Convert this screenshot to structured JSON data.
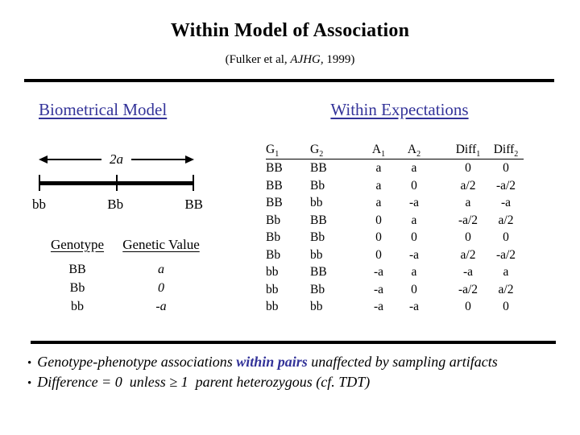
{
  "slide": {
    "title": "Within Model of Association",
    "subtitle_prefix": "(Fulker et al, ",
    "subtitle_journal": "AJHG,",
    "subtitle_suffix": " 1999)"
  },
  "colors": {
    "accent": "#333399",
    "text": "#000000",
    "background": "#ffffff"
  },
  "biometrical": {
    "heading": "Biometrical Model",
    "scale": {
      "arrow_label": "2a",
      "tick_labels": [
        "bb",
        "Bb",
        "BB"
      ]
    },
    "genotype_table": {
      "col1_header": "Genotype",
      "col2_header": "Genetic Value",
      "rows": [
        {
          "genotype": "BB",
          "value": "a"
        },
        {
          "genotype": "Bb",
          "value": "0"
        },
        {
          "genotype": "bb",
          "value": "-a"
        }
      ]
    }
  },
  "expectations": {
    "heading": "Within Expectations",
    "table": {
      "headers": [
        {
          "base": "G",
          "sub": "1"
        },
        {
          "base": "G",
          "sub": "2"
        },
        {
          "base": "A",
          "sub": "1"
        },
        {
          "base": "A",
          "sub": "2"
        },
        {
          "base": "Diff",
          "sub": "1"
        },
        {
          "base": "Diff",
          "sub": "2"
        }
      ],
      "rows": [
        [
          "BB",
          "BB",
          "a",
          "a",
          "0",
          "0"
        ],
        [
          "BB",
          "Bb",
          "a",
          "0",
          "a/2",
          "-a/2"
        ],
        [
          "BB",
          "bb",
          "a",
          "-a",
          "a",
          "-a"
        ],
        [
          "Bb",
          "BB",
          "0",
          "a",
          "-a/2",
          "a/2"
        ],
        [
          "Bb",
          "Bb",
          "0",
          "0",
          "0",
          "0"
        ],
        [
          "Bb",
          "bb",
          "0",
          "-a",
          "a/2",
          "-a/2"
        ],
        [
          "bb",
          "BB",
          "-a",
          "a",
          "-a",
          "a"
        ],
        [
          "bb",
          "Bb",
          "-a",
          "0",
          "-a/2",
          "a/2"
        ],
        [
          "bb",
          "bb",
          "-a",
          "-a",
          "0",
          "0"
        ]
      ]
    }
  },
  "bullets": [
    {
      "marker": "•",
      "parts": [
        {
          "text": "Genotype-phenotype associations ",
          "accent": false
        },
        {
          "text": "within pairs",
          "accent": true
        },
        {
          "text": " unaffected by sampling artifacts",
          "accent": false
        }
      ]
    },
    {
      "marker": "•",
      "parts": [
        {
          "text": "Difference = 0  unless ≥ 1  parent heterozygous (cf. TDT)",
          "accent": false
        }
      ]
    }
  ]
}
